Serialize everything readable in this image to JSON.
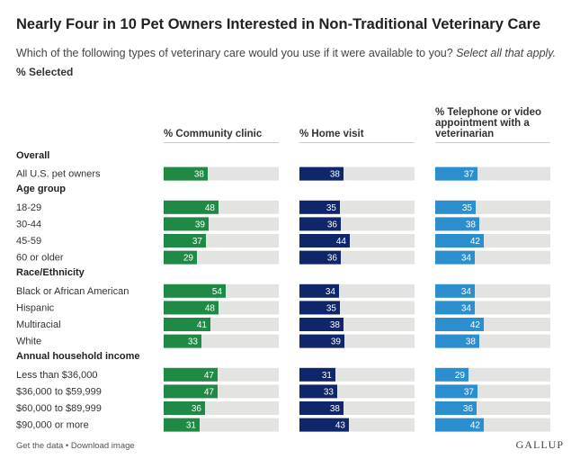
{
  "header": {
    "title": "Nearly Four in 10 Pet Owners Interested in Non-Traditional Veterinary Care",
    "subtitle": "Which of the following types of veterinary care would you use if it were available to you?",
    "subtitle_emphasis": "Select all that apply.",
    "unit_label": "% Selected"
  },
  "columns": {
    "community": "% Community clinic",
    "home": "% Home visit",
    "telephone_line1": "% Telephone or video",
    "telephone_line2": "appointment with a",
    "telephone_line3": "veterinarian"
  },
  "footer": {
    "get_data": "Get the data",
    "separator": " • ",
    "download": "Download image",
    "brand": "GALLUP"
  },
  "colors": {
    "community": "#1e8a46",
    "home": "#10266b",
    "telephone": "#2b8fcf",
    "track": "#e3e4e2"
  },
  "chart_data": {
    "type": "bar",
    "orientation": "horizontal",
    "title": "Nearly Four in 10 Pet Owners Interested in Non-Traditional Veterinary Care",
    "xlim": [
      0,
      100
    ],
    "series_names": [
      "% Community clinic",
      "% Home visit",
      "% Telephone or video appointment with a veterinarian"
    ],
    "groups": [
      {
        "label": "Overall",
        "rows": [
          {
            "label": "All U.S. pet owners",
            "values": [
              38,
              38,
              37
            ]
          }
        ]
      },
      {
        "label": "Age group",
        "rows": [
          {
            "label": "18-29",
            "values": [
              48,
              35,
              35
            ]
          },
          {
            "label": "30-44",
            "values": [
              39,
              36,
              38
            ]
          },
          {
            "label": "45-59",
            "values": [
              37,
              44,
              42
            ]
          },
          {
            "label": "60 or older",
            "values": [
              29,
              36,
              34
            ]
          }
        ]
      },
      {
        "label": "Race/Ethnicity",
        "rows": [
          {
            "label": "Black or African American",
            "values": [
              54,
              34,
              34
            ]
          },
          {
            "label": "Hispanic",
            "values": [
              48,
              35,
              34
            ]
          },
          {
            "label": "Multiracial",
            "values": [
              41,
              38,
              42
            ]
          },
          {
            "label": "White",
            "values": [
              33,
              39,
              38
            ]
          }
        ]
      },
      {
        "label": "Annual household income",
        "rows": [
          {
            "label": "Less than $36,000",
            "values": [
              47,
              31,
              29
            ]
          },
          {
            "label": "$36,000 to $59,999",
            "values": [
              47,
              33,
              37
            ]
          },
          {
            "label": "$60,000 to $89,999",
            "values": [
              36,
              38,
              36
            ]
          },
          {
            "label": "$90,000 or more",
            "values": [
              31,
              43,
              42
            ]
          }
        ]
      }
    ]
  }
}
